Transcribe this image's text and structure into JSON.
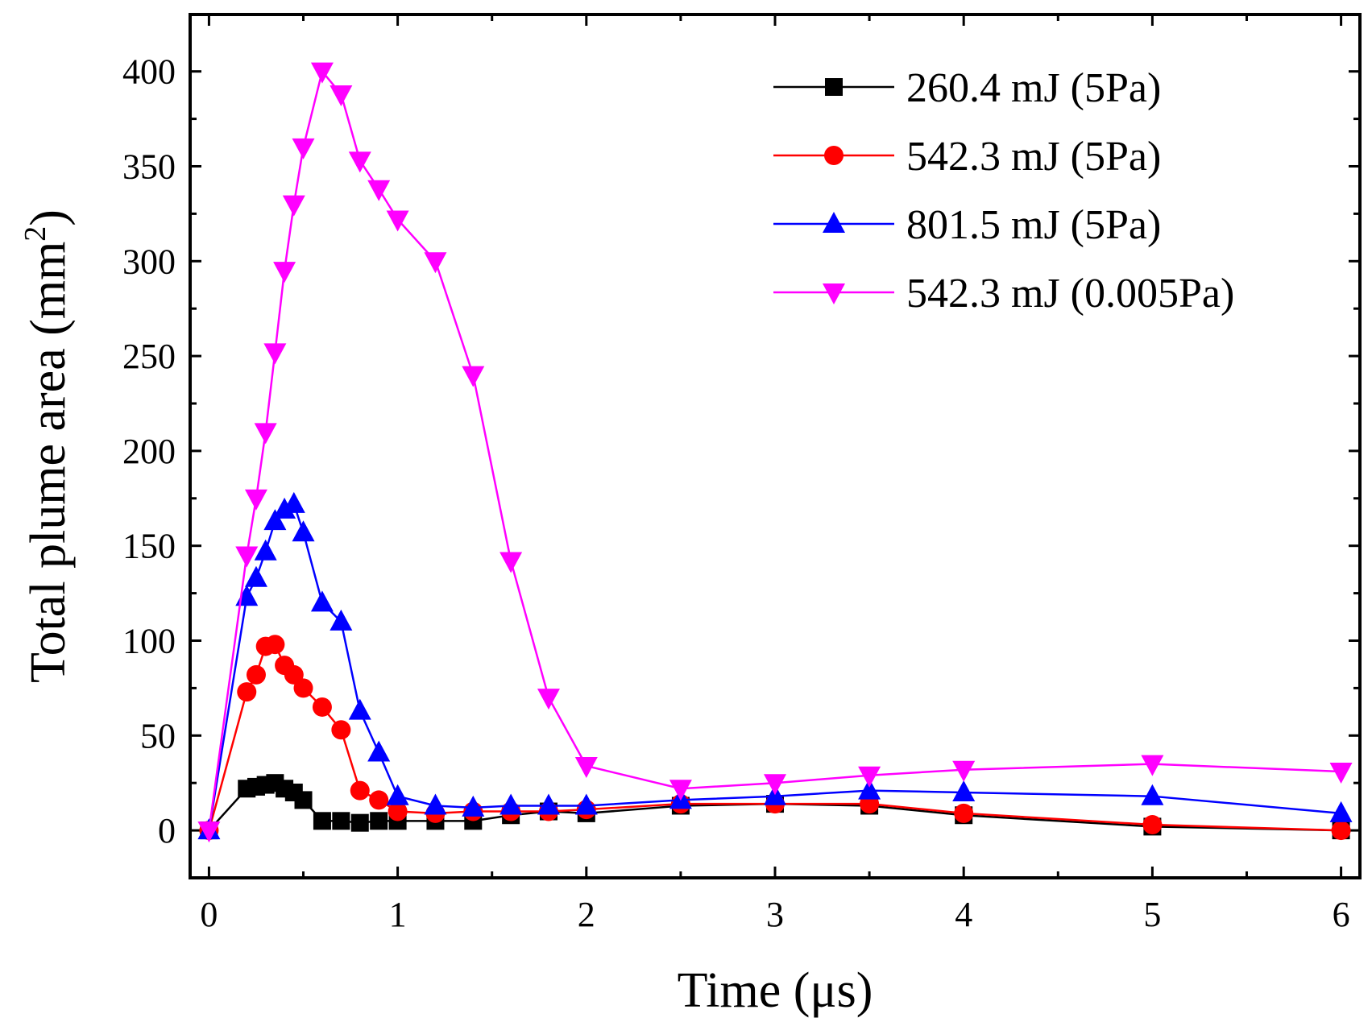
{
  "chart_data": {
    "type": "line",
    "xlabel": "Time (μs)",
    "ylabel_main": "Total plume area (mm",
    "ylabel_sup": "2",
    "ylabel_close": ")",
    "xlim": [
      -0.1,
      6.1
    ],
    "ylim": [
      -25,
      430
    ],
    "xticks": [
      0,
      1,
      2,
      3,
      4,
      5,
      6
    ],
    "yticks": [
      0,
      50,
      100,
      150,
      200,
      250,
      300,
      350,
      400
    ],
    "grid": false,
    "legend_position": "top-right",
    "series": [
      {
        "name": "260.4 mJ (5Pa)",
        "color": "#000000",
        "marker": "square",
        "x": [
          0,
          0.2,
          0.25,
          0.3,
          0.35,
          0.4,
          0.45,
          0.5,
          0.6,
          0.7,
          0.8,
          0.9,
          1.0,
          1.2,
          1.4,
          1.6,
          1.8,
          2.0,
          2.5,
          3.0,
          3.5,
          4.0,
          5.0,
          6.0
        ],
        "y": [
          0,
          22,
          23,
          24,
          25,
          22,
          20,
          16,
          5,
          5,
          4,
          5,
          5,
          5,
          5,
          8,
          10,
          9,
          13,
          14,
          13,
          8,
          2,
          0
        ]
      },
      {
        "name": "542.3 mJ (5Pa)",
        "color": "#ff0000",
        "marker": "circle",
        "x": [
          0,
          0.2,
          0.25,
          0.3,
          0.35,
          0.4,
          0.45,
          0.5,
          0.6,
          0.7,
          0.8,
          0.9,
          1.0,
          1.2,
          1.4,
          1.6,
          1.8,
          2.0,
          2.5,
          3.0,
          3.5,
          4.0,
          5.0,
          6.0
        ],
        "y": [
          0,
          73,
          82,
          97,
          98,
          87,
          82,
          75,
          65,
          53,
          21,
          16,
          10,
          9,
          10,
          10,
          10,
          11,
          14,
          14,
          14,
          9,
          3,
          0
        ]
      },
      {
        "name": "801.5 mJ (5Pa)",
        "color": "#0000ff",
        "marker": "triangle-up",
        "x": [
          0,
          0.2,
          0.25,
          0.3,
          0.35,
          0.4,
          0.45,
          0.5,
          0.6,
          0.7,
          0.8,
          0.9,
          1.0,
          1.2,
          1.4,
          1.6,
          1.8,
          2.0,
          2.5,
          3.0,
          3.5,
          4.0,
          5.0,
          6.0
        ],
        "y": [
          0,
          123,
          133,
          147,
          163,
          169,
          172,
          157,
          120,
          110,
          63,
          41,
          18,
          13,
          12,
          13,
          13,
          13,
          16,
          18,
          21,
          20,
          18,
          9
        ]
      },
      {
        "name": "542.3 mJ (0.005Pa)",
        "color": "#ff00ff",
        "marker": "triangle-down",
        "x": [
          0,
          0.2,
          0.25,
          0.3,
          0.35,
          0.4,
          0.45,
          0.5,
          0.6,
          0.7,
          0.8,
          0.9,
          1.0,
          1.2,
          1.4,
          1.6,
          1.8,
          2.0,
          2.5,
          3.0,
          3.5,
          4.0,
          5.0,
          6.0
        ],
        "y": [
          0,
          145,
          175,
          210,
          252,
          295,
          330,
          360,
          400,
          388,
          353,
          338,
          322,
          300,
          240,
          142,
          70,
          34,
          22,
          25,
          29,
          32,
          35,
          31
        ]
      }
    ]
  }
}
